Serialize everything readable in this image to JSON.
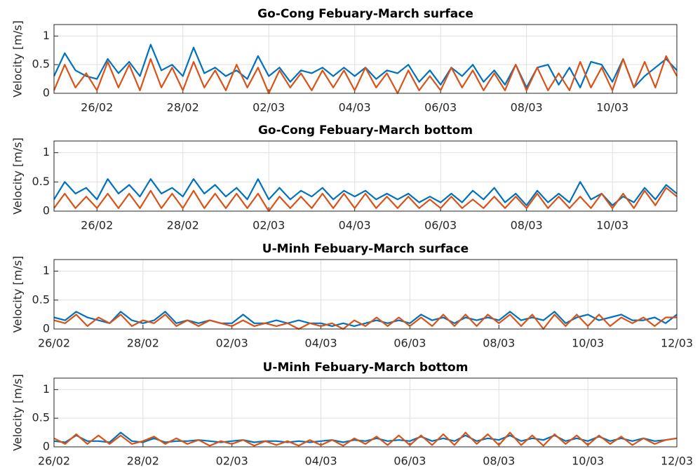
{
  "chart_data": [
    {
      "type": "line",
      "title": "Go-Cong Febuary-March surface",
      "ylabel": "Velocity [m/s]",
      "x": [
        56,
        56.25,
        56.5,
        56.75,
        57,
        57.25,
        57.5,
        57.75,
        58,
        58.25,
        58.5,
        58.75,
        59,
        59.25,
        59.5,
        59.75,
        60,
        60.25,
        60.5,
        60.75,
        61,
        61.25,
        61.5,
        61.75,
        62,
        62.25,
        62.5,
        62.75,
        63,
        63.25,
        63.5,
        63.75,
        64,
        64.25,
        64.5,
        64.75,
        65,
        65.25,
        65.5,
        65.75,
        66,
        66.25,
        66.5,
        66.75,
        67,
        67.25,
        67.5,
        67.75,
        68,
        68.25,
        68.5,
        68.75,
        69,
        69.25,
        69.5,
        69.75,
        70,
        70.25,
        70.5
      ],
      "series": [
        {
          "color": "#0072BD",
          "values": [
            0.3,
            0.7,
            0.4,
            0.3,
            0.25,
            0.6,
            0.35,
            0.55,
            0.3,
            0.85,
            0.4,
            0.5,
            0.3,
            0.8,
            0.35,
            0.45,
            0.3,
            0.4,
            0.25,
            0.65,
            0.3,
            0.45,
            0.2,
            0.4,
            0.35,
            0.45,
            0.3,
            0.45,
            0.3,
            0.45,
            0.25,
            0.4,
            0.35,
            0.5,
            0.2,
            0.4,
            0.15,
            0.45,
            0.3,
            0.5,
            0.2,
            0.4,
            0.15,
            0.5,
            0.1,
            0.45,
            0.5,
            0.15,
            0.45,
            0.1,
            0.55,
            0.5,
            0.2,
            0.6,
            0.1,
            0.3,
            0.45,
            0.6,
            0.4
          ]
        },
        {
          "color": "#D95319",
          "values": [
            0.05,
            0.5,
            0.1,
            0.35,
            0.05,
            0.55,
            0.1,
            0.5,
            0.05,
            0.6,
            0.1,
            0.45,
            0.05,
            0.55,
            0.1,
            0.4,
            0.05,
            0.5,
            0.1,
            0.45,
            0.0,
            0.4,
            0.1,
            0.35,
            0.05,
            0.4,
            0.1,
            0.4,
            0.05,
            0.45,
            0.1,
            0.35,
            0.0,
            0.4,
            0.05,
            0.3,
            0.05,
            0.45,
            0.1,
            0.4,
            0.05,
            0.35,
            0.05,
            0.5,
            0.05,
            0.45,
            0.05,
            0.35,
            0.05,
            0.55,
            0.1,
            0.45,
            0.05,
            0.6,
            0.1,
            0.55,
            0.1,
            0.65,
            0.3
          ]
        }
      ],
      "xlim": [
        56,
        70.5
      ],
      "xticks": [
        {
          "value": 57,
          "label": "26/02"
        },
        {
          "value": 59,
          "label": "28/02"
        },
        {
          "value": 61,
          "label": "02/03"
        },
        {
          "value": 63,
          "label": "04/03"
        },
        {
          "value": 65,
          "label": "06/03"
        },
        {
          "value": 67,
          "label": "08/03"
        },
        {
          "value": 69,
          "label": "10/03"
        }
      ],
      "ylim": [
        0,
        1.2
      ],
      "yticks": [
        0,
        0.5,
        1
      ],
      "grid": true
    },
    {
      "type": "line",
      "title": "Go-Cong Febuary-March bottom",
      "ylabel": "Velocity [m/s]",
      "x": [
        56,
        56.25,
        56.5,
        56.75,
        57,
        57.25,
        57.5,
        57.75,
        58,
        58.25,
        58.5,
        58.75,
        59,
        59.25,
        59.5,
        59.75,
        60,
        60.25,
        60.5,
        60.75,
        61,
        61.25,
        61.5,
        61.75,
        62,
        62.25,
        62.5,
        62.75,
        63,
        63.25,
        63.5,
        63.75,
        64,
        64.25,
        64.5,
        64.75,
        65,
        65.25,
        65.5,
        65.75,
        66,
        66.25,
        66.5,
        66.75,
        67,
        67.25,
        67.5,
        67.75,
        68,
        68.25,
        68.5,
        68.75,
        69,
        69.25,
        69.5,
        69.75,
        70,
        70.25,
        70.5
      ],
      "series": [
        {
          "color": "#0072BD",
          "values": [
            0.2,
            0.5,
            0.3,
            0.4,
            0.2,
            0.55,
            0.3,
            0.45,
            0.25,
            0.55,
            0.3,
            0.4,
            0.25,
            0.55,
            0.3,
            0.45,
            0.25,
            0.4,
            0.2,
            0.55,
            0.2,
            0.4,
            0.2,
            0.35,
            0.25,
            0.4,
            0.2,
            0.35,
            0.25,
            0.35,
            0.2,
            0.3,
            0.2,
            0.3,
            0.15,
            0.25,
            0.15,
            0.3,
            0.15,
            0.35,
            0.2,
            0.4,
            0.15,
            0.3,
            0.1,
            0.35,
            0.15,
            0.3,
            0.15,
            0.5,
            0.2,
            0.3,
            0.1,
            0.25,
            0.15,
            0.4,
            0.2,
            0.45,
            0.3
          ]
        },
        {
          "color": "#D95319",
          "values": [
            0.05,
            0.3,
            0.05,
            0.25,
            0.05,
            0.3,
            0.05,
            0.3,
            0.05,
            0.35,
            0.05,
            0.3,
            0.05,
            0.35,
            0.05,
            0.3,
            0.05,
            0.3,
            0.05,
            0.3,
            0.0,
            0.25,
            0.05,
            0.25,
            0.05,
            0.3,
            0.05,
            0.3,
            0.05,
            0.3,
            0.05,
            0.25,
            0.05,
            0.25,
            0.05,
            0.2,
            0.05,
            0.25,
            0.05,
            0.2,
            0.05,
            0.25,
            0.05,
            0.25,
            0.05,
            0.3,
            0.05,
            0.25,
            0.05,
            0.25,
            0.05,
            0.3,
            0.05,
            0.3,
            0.05,
            0.35,
            0.1,
            0.4,
            0.25
          ]
        }
      ],
      "xlim": [
        56,
        70.5
      ],
      "xticks": [
        {
          "value": 57,
          "label": "26/02"
        },
        {
          "value": 59,
          "label": "28/02"
        },
        {
          "value": 61,
          "label": "02/03"
        },
        {
          "value": 63,
          "label": "04/03"
        },
        {
          "value": 65,
          "label": "06/03"
        },
        {
          "value": 67,
          "label": "08/03"
        },
        {
          "value": 69,
          "label": "10/03"
        }
      ],
      "ylim": [
        0,
        1.2
      ],
      "yticks": [
        0,
        0.5,
        1
      ],
      "grid": true
    },
    {
      "type": "line",
      "title": "U-Minh Febuary-March surface",
      "ylabel": "Velocity [m/s]",
      "x": [
        57,
        57.25,
        57.5,
        57.75,
        58,
        58.25,
        58.5,
        58.75,
        59,
        59.25,
        59.5,
        59.75,
        60,
        60.25,
        60.5,
        60.75,
        61,
        61.25,
        61.5,
        61.75,
        62,
        62.25,
        62.5,
        62.75,
        63,
        63.25,
        63.5,
        63.75,
        64,
        64.25,
        64.5,
        64.75,
        65,
        65.25,
        65.5,
        65.75,
        66,
        66.25,
        66.5,
        66.75,
        67,
        67.25,
        67.5,
        67.75,
        68,
        68.25,
        68.5,
        68.75,
        69,
        69.25,
        69.5,
        69.75,
        70,
        70.25,
        70.5,
        70.75,
        71
      ],
      "series": [
        {
          "color": "#0072BD",
          "values": [
            0.2,
            0.15,
            0.3,
            0.2,
            0.15,
            0.1,
            0.3,
            0.15,
            0.1,
            0.15,
            0.3,
            0.1,
            0.15,
            0.1,
            0.15,
            0.1,
            0.1,
            0.25,
            0.1,
            0.1,
            0.15,
            0.1,
            0.15,
            0.1,
            0.1,
            0.05,
            0.1,
            0.05,
            0.1,
            0.15,
            0.1,
            0.15,
            0.1,
            0.25,
            0.15,
            0.2,
            0.1,
            0.2,
            0.15,
            0.2,
            0.15,
            0.3,
            0.15,
            0.2,
            0.15,
            0.3,
            0.1,
            0.2,
            0.25,
            0.15,
            0.2,
            0.25,
            0.15,
            0.15,
            0.2,
            0.1,
            0.25
          ]
        },
        {
          "color": "#D95319",
          "values": [
            0.15,
            0.1,
            0.25,
            0.05,
            0.2,
            0.1,
            0.25,
            0.05,
            0.15,
            0.1,
            0.25,
            0.05,
            0.15,
            0.05,
            0.15,
            0.1,
            0.05,
            0.15,
            0.05,
            0.1,
            0.05,
            0.1,
            0.0,
            0.1,
            0.05,
            0.1,
            0.0,
            0.15,
            0.05,
            0.2,
            0.05,
            0.2,
            0.05,
            0.2,
            0.05,
            0.25,
            0.05,
            0.25,
            0.05,
            0.25,
            0.1,
            0.25,
            0.05,
            0.25,
            0.0,
            0.25,
            0.05,
            0.25,
            0.05,
            0.25,
            0.05,
            0.2,
            0.1,
            0.2,
            0.05,
            0.2,
            0.2
          ]
        }
      ],
      "xlim": [
        57,
        71
      ],
      "xticks": [
        {
          "value": 57,
          "label": "26/02"
        },
        {
          "value": 59,
          "label": "28/02"
        },
        {
          "value": 61,
          "label": "02/03"
        },
        {
          "value": 63,
          "label": "04/03"
        },
        {
          "value": 65,
          "label": "06/03"
        },
        {
          "value": 67,
          "label": "08/03"
        },
        {
          "value": 69,
          "label": "10/03"
        },
        {
          "value": 71,
          "label": "12/03"
        }
      ],
      "ylim": [
        0,
        1.2
      ],
      "yticks": [
        0,
        0.5,
        1
      ],
      "grid": true
    },
    {
      "type": "line",
      "title": "U-Minh Febuary-March bottom",
      "ylabel": "Velocity [m/s]",
      "x": [
        57,
        57.25,
        57.5,
        57.75,
        58,
        58.25,
        58.5,
        58.75,
        59,
        59.25,
        59.5,
        59.75,
        60,
        60.25,
        60.5,
        60.75,
        61,
        61.25,
        61.5,
        61.75,
        62,
        62.25,
        62.5,
        62.75,
        63,
        63.25,
        63.5,
        63.75,
        64,
        64.25,
        64.5,
        64.75,
        65,
        65.25,
        65.5,
        65.75,
        66,
        66.25,
        66.5,
        66.75,
        67,
        67.25,
        67.5,
        67.75,
        68,
        68.25,
        68.5,
        68.75,
        69,
        69.25,
        69.5,
        69.75,
        70,
        70.25,
        70.5,
        70.75,
        71
      ],
      "series": [
        {
          "color": "#0072BD",
          "values": [
            0.1,
            0.08,
            0.2,
            0.1,
            0.1,
            0.08,
            0.25,
            0.1,
            0.08,
            0.15,
            0.08,
            0.1,
            0.1,
            0.12,
            0.1,
            0.08,
            0.1,
            0.12,
            0.08,
            0.1,
            0.1,
            0.08,
            0.1,
            0.08,
            0.1,
            0.12,
            0.08,
            0.12,
            0.1,
            0.15,
            0.1,
            0.12,
            0.1,
            0.18,
            0.1,
            0.15,
            0.1,
            0.2,
            0.1,
            0.15,
            0.12,
            0.2,
            0.1,
            0.15,
            0.12,
            0.2,
            0.1,
            0.15,
            0.1,
            0.18,
            0.1,
            0.15,
            0.1,
            0.15,
            0.1,
            0.12,
            0.15
          ]
        },
        {
          "color": "#D95319",
          "values": [
            0.15,
            0.05,
            0.22,
            0.05,
            0.2,
            0.05,
            0.2,
            0.05,
            0.1,
            0.18,
            0.05,
            0.15,
            0.05,
            0.12,
            0.02,
            0.1,
            0.05,
            0.12,
            0.02,
            0.1,
            0.03,
            0.1,
            0.02,
            0.12,
            0.03,
            0.12,
            0.02,
            0.15,
            0.05,
            0.18,
            0.03,
            0.2,
            0.03,
            0.2,
            0.03,
            0.22,
            0.03,
            0.25,
            0.05,
            0.22,
            0.03,
            0.25,
            0.03,
            0.2,
            0.02,
            0.22,
            0.05,
            0.2,
            0.03,
            0.2,
            0.05,
            0.18,
            0.03,
            0.15,
            0.05,
            0.12,
            0.15
          ]
        }
      ],
      "xlim": [
        57,
        71
      ],
      "xticks": [
        {
          "value": 57,
          "label": "26/02"
        },
        {
          "value": 59,
          "label": "28/02"
        },
        {
          "value": 61,
          "label": "02/03"
        },
        {
          "value": 63,
          "label": "04/03"
        },
        {
          "value": 65,
          "label": "06/03"
        },
        {
          "value": 67,
          "label": "08/03"
        },
        {
          "value": 69,
          "label": "10/03"
        },
        {
          "value": 71,
          "label": "12/03"
        }
      ],
      "ylim": [
        0,
        1.2
      ],
      "yticks": [
        0,
        0.5,
        1
      ],
      "grid": true
    }
  ]
}
